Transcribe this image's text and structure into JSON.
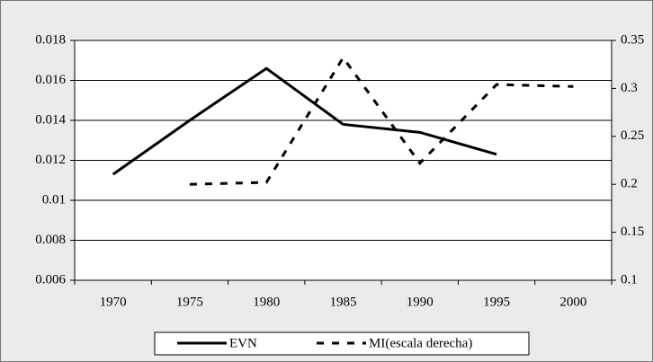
{
  "chart_data": {
    "type": "line",
    "categories": [
      "1970",
      "1975",
      "1980",
      "1985",
      "1990",
      "1995",
      "2000"
    ],
    "series": [
      {
        "name": "EVN",
        "color": "#000000",
        "values": [
          0.0113,
          0.014,
          0.0166,
          0.0138,
          0.0134,
          0.0123,
          null
        ]
      },
      {
        "name": "MI(escala derecha)",
        "color": "#000000",
        "axis": "y2",
        "values": [
          null,
          0.2,
          0.202,
          0.332,
          0.222,
          0.304,
          0.302
        ]
      }
    ],
    "ylim": [
      0.006,
      0.018
    ],
    "yticks": [
      0.006,
      0.008,
      0.01,
      0.012,
      0.014,
      0.016,
      0.018
    ],
    "y2lim": [
      0.1,
      0.35
    ],
    "y2ticks": [
      0.1,
      0.15,
      0.2,
      0.25,
      0.3,
      0.35
    ],
    "grid": true,
    "legend": "bottom"
  }
}
